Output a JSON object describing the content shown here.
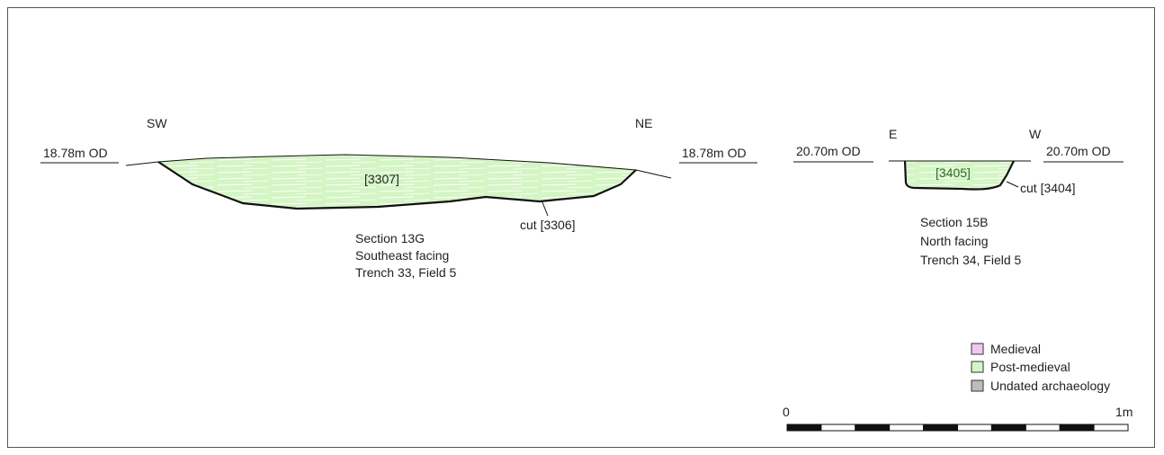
{
  "colors": {
    "fill_post_medieval": "#d4f5c4",
    "fill_medieval": "#f0c8f0",
    "fill_undated": "#bdbdbd",
    "outline": "#111111"
  },
  "section_13g": {
    "orientation_left": "SW",
    "orientation_right": "NE",
    "datum_left": "18.78m OD",
    "datum_right": "18.78m OD",
    "fill_label": "[3307]",
    "cut_label": "cut [3306]",
    "caption": [
      "Section 13G",
      "Southeast facing",
      "Trench 33, Field 5"
    ]
  },
  "section_15b": {
    "orientation_left": "E",
    "orientation_right": "W",
    "datum_left": "20.70m OD",
    "datum_right": "20.70m OD",
    "fill_label": "[3405]",
    "cut_label": "cut [3404]",
    "caption": [
      "Section 15B",
      "North facing",
      "Trench 34, Field 5"
    ]
  },
  "legend": {
    "items": [
      {
        "label": "Medieval",
        "color": "#f0c8f0"
      },
      {
        "label": "Post-medieval",
        "color": "#d4f5c4"
      },
      {
        "label": "Undated archaeology",
        "color": "#bdbdbd"
      }
    ]
  },
  "scale_bar": {
    "label_start": "0",
    "label_end": "1m"
  }
}
